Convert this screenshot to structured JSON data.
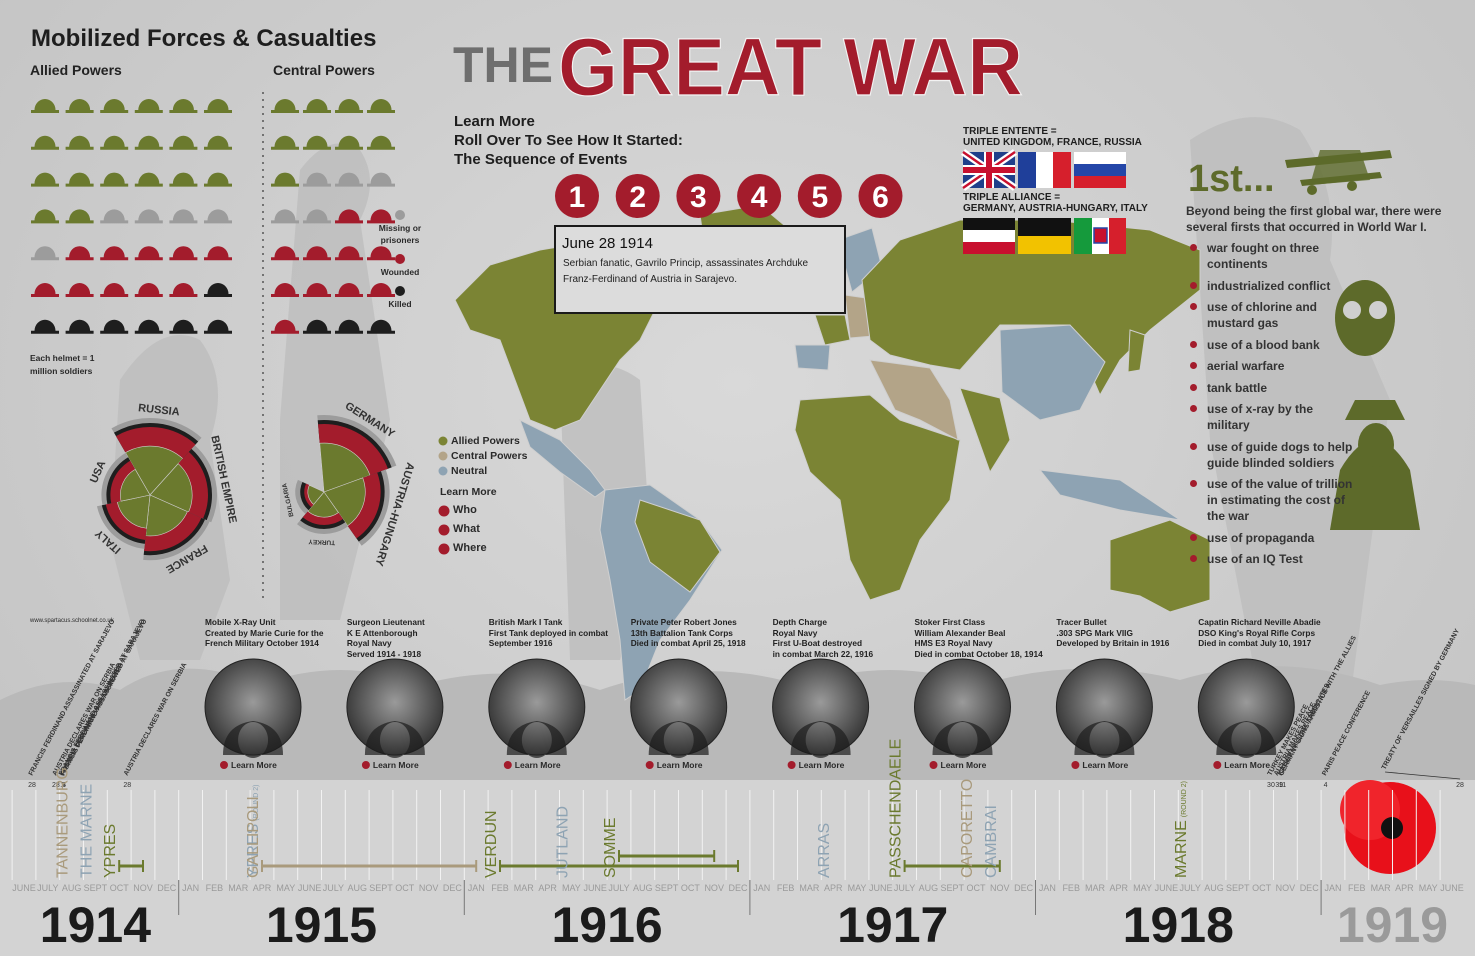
{
  "helmets": {
    "title": "Mobilized Forces & Casualties",
    "statuses": [
      {
        "label": null,
        "color": "#6b7a2e"
      },
      {
        "label": "Missing or prisoners",
        "color": "#9c9c9c"
      },
      {
        "label": "Wounded",
        "color": "#a31c2c"
      },
      {
        "label": "Killed",
        "color": "#1e1e1e"
      }
    ],
    "groups": [
      {
        "name": "Allied Powers",
        "counts": [
          20,
          5,
          10,
          7
        ]
      },
      {
        "name": "Central Powers",
        "counts": [
          9,
          5,
          11,
          3
        ]
      }
    ],
    "note": "Each helmet = 1 million soldiers"
  },
  "roses": [
    {
      "categories": [
        "RUSSIA",
        "BRITISH EMPIRE",
        "FRANCE",
        "ITALY",
        "USA"
      ],
      "values": [
        12,
        8.9,
        8.4,
        5.6,
        4.4
      ]
    },
    {
      "categories": [
        "GERMANY",
        "AUSTRIA-HUNGARY",
        "TURKEY",
        "BULGARIA"
      ],
      "values": [
        11,
        7.8,
        2.9,
        1.2
      ]
    }
  ],
  "title": {
    "the": "THE",
    "main": "GREAT WAR"
  },
  "sequence": {
    "lines": [
      "Learn More",
      "Roll Over To See How It Started:",
      "The Sequence of Events"
    ],
    "steps": [
      1,
      2,
      3,
      4,
      5,
      6
    ],
    "tooltip": {
      "date": "June 28 1914",
      "text": "Serbian fanatic, Gavrilo Princip, assassinates Archduke Franz-Ferdinand of Austria in Sarajevo."
    }
  },
  "alliances": [
    {
      "title": "TRIPLE ENTENTE =",
      "members": "UNITED KINGDOM, FRANCE, RUSSIA"
    },
    {
      "title": "TRIPLE ALLIANCE =",
      "members": "GERMANY, AUSTRIA-HUNGARY, ITALY"
    }
  ],
  "map_legend": [
    {
      "label": "Allied Powers",
      "color": "#7b8434"
    },
    {
      "label": "Central Powers",
      "color": "#b3a488"
    },
    {
      "label": "Neutral",
      "color": "#8ea3b3"
    }
  ],
  "learn_more": {
    "title": "Learn More",
    "items": [
      "Who",
      "What",
      "Where"
    ]
  },
  "firsts": {
    "title": "1st...",
    "intro": "Beyond being the first global war, there were several firsts that occurred in World War I.",
    "items": [
      "war fought on three continents",
      "industrialized conflict",
      "use of chlorine and mustard gas",
      "use of a blood bank",
      "aerial warfare",
      "tank battle",
      "use of x-ray by the military",
      "use of guide dogs to help guide blinded soldiers",
      "use of the value of trillion in estimating the cost of the war",
      "use of propaganda",
      "use of an IQ Test"
    ]
  },
  "source": "www.spartacus.schoolnet.co.uk",
  "cards": {
    "link": "Learn More",
    "items": [
      [
        "Mobile X-Ray Unit",
        "Created by Marie Curie for the",
        "French Military October 1914"
      ],
      [
        "Surgeon Lieutenant",
        "K E Attenborough",
        "Royal Navy",
        "Served 1914 - 1918"
      ],
      [
        "British Mark I Tank",
        "First Tank deployed in combat",
        "September 1916"
      ],
      [
        "Private Peter Robert Jones",
        "13th Battalion Tank Corps",
        "Died in combat April 25, 1918"
      ],
      [
        "Depth Charge",
        "Royal Navy",
        "First U-Boat destroyed",
        "in combat March 22, 1916"
      ],
      [
        "Stoker First Class",
        "William Alexander Beal",
        "HMS E3 Royal Navy",
        "Died in combat October 18, 1914"
      ],
      [
        "Tracer Bullet",
        ".303 SPG Mark VIIG",
        "Developed by Britain in 1916"
      ],
      [
        "Capatin Richard Neville Abadie",
        "DSO King's Royal Rifle Corps",
        "Died in combat July 10, 1917"
      ]
    ]
  },
  "timeline": {
    "years": [
      {
        "year": 1914,
        "color": "#1b1b1b"
      },
      {
        "year": 1915,
        "color": "#1b1b1b"
      },
      {
        "year": 1916,
        "color": "#1b1b1b"
      },
      {
        "year": 1917,
        "color": "#1b1b1b"
      },
      {
        "year": 1918,
        "color": "#1b1b1b"
      },
      {
        "year": 1919,
        "color": "#9a9a9a"
      }
    ],
    "months": [
      [
        "JUNE",
        "JULY",
        "AUG",
        "SEPT",
        "OCT",
        "NOV",
        "DEC"
      ],
      [
        "JAN",
        "FEB",
        "MAR",
        "APR",
        "MAY",
        "JUNE",
        "JULY",
        "AUG",
        "SEPT",
        "OCT",
        "NOV",
        "DEC"
      ],
      [
        "JAN",
        "FEB",
        "MAR",
        "APR",
        "MAY",
        "JUNE",
        "JULY",
        "AUG",
        "SEPT",
        "OCT",
        "NOV",
        "DEC"
      ],
      [
        "JAN",
        "FEB",
        "MAR",
        "APR",
        "MAY",
        "JUNE",
        "JULY",
        "AUG",
        "SEPT",
        "OCT",
        "NOV",
        "DEC"
      ],
      [
        "JAN",
        "FEB",
        "MAR",
        "APR",
        "MAY",
        "JUNE",
        "JULY",
        "AUG",
        "SEPT",
        "OCT",
        "NOV",
        "DEC"
      ],
      [
        "JAN",
        "FEB",
        "MAR",
        "APR",
        "MAY",
        "JUNE"
      ]
    ],
    "events": [
      {
        "text": "FRANCIS FERDINAND ASSASSINATED AT SARAJEVO",
        "year": 1914,
        "month": "JUNE",
        "day": 28
      },
      {
        "text": "AUSTRIA DECLARES WAR ON SERBIA",
        "year": 1914,
        "month": "JULY",
        "day": 28
      },
      {
        "text": "FRANCIS FERDINAND ASSASSINATED AT SARAJEVO",
        "year": 1914,
        "month": "AUG",
        "day": 1
      },
      {
        "text": "AUSTRIA DECLARES WAR ON SERBIA",
        "year": 1914,
        "month": "AUG",
        "day": 3
      },
      {
        "text": "FRANCIS FERDINAND ASSASSINATED AT SARAJEVO",
        "year": 1914,
        "month": "AUG",
        "day": 4
      },
      {
        "text": "AUSTRIA DECLARES WAR ON SERBIA",
        "year": 1914,
        "month": "OCT",
        "day": 28
      },
      {
        "text": "TURKEY MAKES PEACE",
        "year": 1918,
        "month": "OCT",
        "day": 30
      },
      {
        "text": "AUSTRIA MAKES PEACE",
        "year": 1918,
        "month": "NOV",
        "day": 3
      },
      {
        "text": "KAISER WILLIAM II ABDICATES",
        "year": 1918,
        "month": "NOV",
        "day": 9
      },
      {
        "text": "GERMANY SIGNS ARMISTICE WITH THE ALLIES",
        "year": 1918,
        "month": "NOV",
        "day": 11
      },
      {
        "text": "PARIS PEACE CONFERENCE",
        "year": 1919,
        "month": "JAN",
        "day": 4
      },
      {
        "text": "TREATY OF VERSAILLES SIGNED BY GERMANY",
        "year": 1919,
        "month": "JUNE",
        "day": 28
      }
    ],
    "battles": [
      {
        "name": "TANNENBURG",
        "color": "#a99a7c",
        "year": 1914,
        "month": "AUG"
      },
      {
        "name": "THE MARNE",
        "color": "#8ea3b3",
        "year": 1914,
        "month": "SEPT"
      },
      {
        "name": "YPRES",
        "color": "#6b7a2e",
        "year": 1914,
        "month": "OCT",
        "end": {
          "year": 1914,
          "month": "NOV"
        }
      },
      {
        "name": "YPRES",
        "note": "(ROUND 2)",
        "color": "#8ea3b3",
        "year": 1915,
        "month": "APR"
      },
      {
        "name": "GALLIPOLI",
        "color": "#a99a7c",
        "year": 1915,
        "month": "APR",
        "end": {
          "year": 1916,
          "month": "JAN"
        }
      },
      {
        "name": "VERDUN",
        "color": "#6b7a2e",
        "year": 1916,
        "month": "FEB",
        "end": {
          "year": 1916,
          "month": "DEC"
        }
      },
      {
        "name": "JUTLAND",
        "color": "#8ea3b3",
        "year": 1916,
        "month": "MAY"
      },
      {
        "name": "SOMME",
        "color": "#6b7a2e",
        "year": 1916,
        "month": "JULY",
        "end": {
          "year": 1916,
          "month": "NOV"
        }
      },
      {
        "name": "ARRAS",
        "color": "#8ea3b3",
        "year": 1917,
        "month": "APR"
      },
      {
        "name": "PASSCHENDAELE",
        "color": "#6b7a2e",
        "year": 1917,
        "month": "JULY",
        "end": {
          "year": 1917,
          "month": "NOV"
        }
      },
      {
        "name": "CAPORETTO",
        "color": "#a99a7c",
        "year": 1917,
        "month": "OCT"
      },
      {
        "name": "CAMBRAI",
        "color": "#8ea3b3",
        "year": 1917,
        "month": "NOV"
      },
      {
        "name": "MARNE",
        "note": "(ROUND 2)",
        "color": "#6b7a2e",
        "year": 1918,
        "month": "JULY"
      }
    ]
  }
}
